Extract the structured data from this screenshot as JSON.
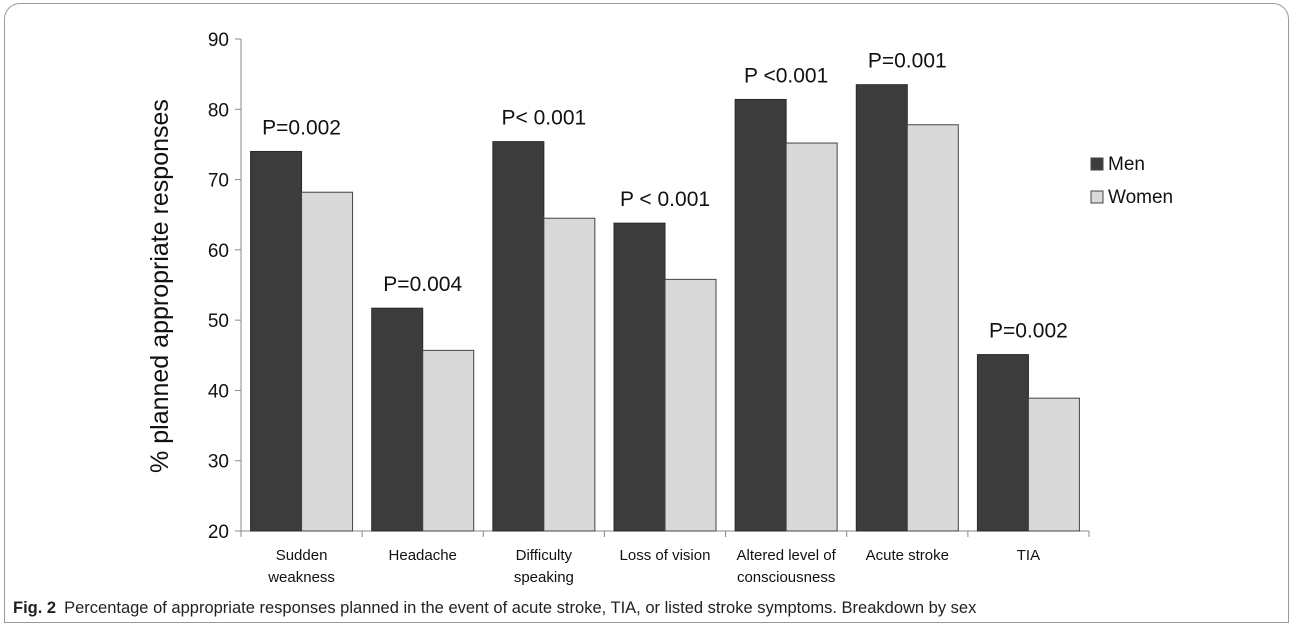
{
  "chart_data": {
    "type": "bar",
    "categories": [
      [
        "Sudden",
        "weakness"
      ],
      [
        "Headache"
      ],
      [
        "Difficulty",
        "speaking"
      ],
      [
        "Loss of vision"
      ],
      [
        "Altered level of",
        "consciousness"
      ],
      [
        "Acute stroke"
      ],
      [
        "TIA"
      ]
    ],
    "series": [
      {
        "name": "Men",
        "values": [
          74.0,
          51.7,
          75.4,
          63.8,
          81.4,
          83.5,
          45.1
        ],
        "color": "#3c3c3c"
      },
      {
        "name": "Women",
        "values": [
          68.2,
          45.7,
          64.5,
          55.8,
          75.2,
          77.8,
          38.9
        ],
        "color": "#d9d9d9"
      }
    ],
    "annotations": [
      "P=0.002",
      "P=0.004",
      "P< 0.001",
      "P < 0.001",
      "P <0.001",
      "P=0.001",
      "P=0.002"
    ],
    "ylabel": "% planned appropriate responses",
    "xlabel": "",
    "ylim": [
      20,
      90
    ],
    "yticks": [
      20,
      30,
      40,
      50,
      60,
      70,
      80,
      90
    ],
    "grid": false,
    "legend_position": "right"
  },
  "caption": {
    "label": "Fig. 2",
    "text": "Percentage of appropriate responses planned in the event of acute stroke, TIA, or listed stroke symptoms. Breakdown by sex"
  }
}
